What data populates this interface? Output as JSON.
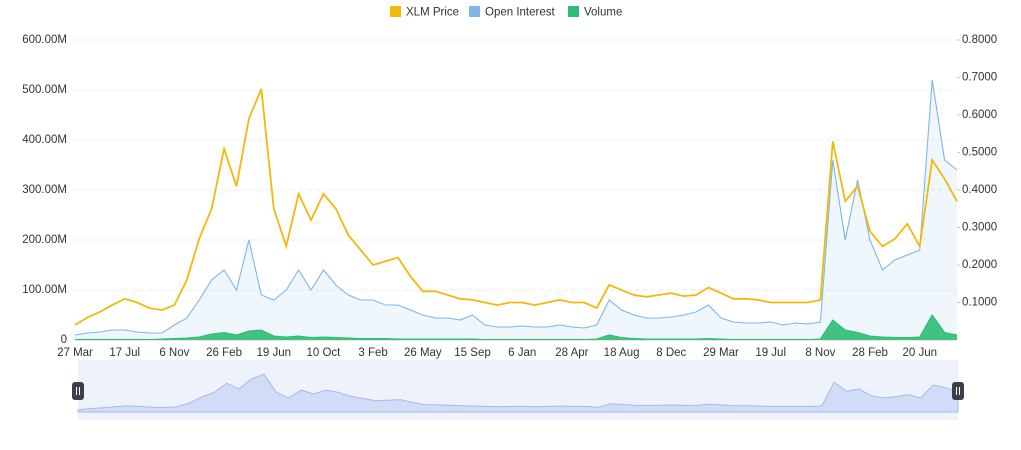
{
  "chart_data": {
    "type": "line",
    "categories": [
      "27 Mar",
      null,
      null,
      null,
      "17 Jul",
      null,
      null,
      null,
      "6 Nov",
      null,
      null,
      null,
      "26 Feb",
      null,
      null,
      null,
      "19 Jun",
      null,
      null,
      null,
      "10 Oct",
      null,
      null,
      null,
      "3 Feb",
      null,
      null,
      null,
      "26 May",
      null,
      null,
      null,
      "15 Sep",
      null,
      null,
      null,
      "6 Jan",
      null,
      null,
      null,
      "28 Apr",
      null,
      null,
      null,
      "18 Aug",
      null,
      null,
      null,
      "8 Dec",
      null,
      null,
      null,
      "29 Mar",
      null,
      null,
      null,
      "19 Jul",
      null,
      null,
      null,
      "8 Nov",
      null,
      null,
      null,
      "28 Feb",
      null,
      null,
      null,
      "20 Jun",
      null,
      null,
      null
    ],
    "series": [
      {
        "name": "XLM Price",
        "color": "#f0b90b",
        "axis": "y2",
        "values": [
          0.04,
          0.06,
          0.075,
          0.093,
          0.11,
          0.1,
          0.085,
          0.08,
          0.093,
          0.16,
          0.27,
          0.35,
          0.51,
          0.41,
          0.59,
          0.67,
          0.35,
          0.25,
          0.39,
          0.32,
          0.39,
          0.35,
          0.28,
          0.24,
          0.2,
          0.21,
          0.22,
          0.17,
          0.13,
          0.13,
          0.12,
          0.11,
          0.107,
          0.1,
          0.093,
          0.1,
          0.1,
          0.093,
          0.1,
          0.107,
          0.1,
          0.1,
          0.085,
          0.147,
          0.133,
          0.12,
          0.115,
          0.12,
          0.125,
          0.117,
          0.12,
          0.14,
          0.125,
          0.11,
          0.11,
          0.107,
          0.1,
          0.1,
          0.1,
          0.1,
          0.107,
          0.53,
          0.37,
          0.41,
          0.29,
          0.25,
          0.27,
          0.31,
          0.25,
          0.48,
          0.43,
          0.37
        ]
      },
      {
        "name": "Open Interest",
        "color": "#7eb6ea",
        "values": [
          10000000.0,
          14000000.0,
          16000000.0,
          20000000.0,
          20000000.0,
          16000000.0,
          14000000.0,
          14000000.0,
          30000000.0,
          44000000.0,
          80000000.0,
          120000000.0,
          140000000.0,
          100000000.0,
          200000000.0,
          90000000.0,
          80000000.0,
          100000000.0,
          140000000.0,
          100000000.0,
          140000000.0,
          110000000.0,
          90000000.0,
          80000000.0,
          80000000.0,
          70000000.0,
          70000000.0,
          60000000.0,
          50000000.0,
          44000000.0,
          44000000.0,
          40000000.0,
          50000000.0,
          30000000.0,
          26000000.0,
          26000000.0,
          28000000.0,
          26000000.0,
          26000000.0,
          30000000.0,
          26000000.0,
          24000000.0,
          30000000.0,
          80000000.0,
          60000000.0,
          50000000.0,
          44000000.0,
          44000000.0,
          46000000.0,
          50000000.0,
          56000000.0,
          70000000.0,
          44000000.0,
          36000000.0,
          34000000.0,
          34000000.0,
          36000000.0,
          30000000.0,
          34000000.0,
          32000000.0,
          36000000.0,
          360000000.0,
          200000000.0,
          320000000.0,
          200000000.0,
          140000000.0,
          160000000.0,
          170000000.0,
          180000000.0,
          520000000.0,
          360000000.0,
          340000000.0
        ]
      },
      {
        "name": "Volume",
        "color": "#2ebd73",
        "values": [
          1000000.0,
          1000000.0,
          1000000.0,
          1000000.0,
          1000000.0,
          1000000.0,
          1000000.0,
          2000000.0,
          3000000.0,
          4000000.0,
          6000000.0,
          12000000.0,
          15000000.0,
          10000000.0,
          18000000.0,
          20000000.0,
          8000000.0,
          6000000.0,
          8000000.0,
          5000000.0,
          6000000.0,
          5000000.0,
          4000000.0,
          3000000.0,
          3000000.0,
          3000000.0,
          2000000.0,
          2000000.0,
          2000000.0,
          2000000.0,
          2000000.0,
          2000000.0,
          2000000.0,
          1000000.0,
          1000000.0,
          1000000.0,
          1000000.0,
          1000000.0,
          1000000.0,
          1000000.0,
          1000000.0,
          1000000.0,
          2000000.0,
          10000000.0,
          5000000.0,
          3000000.0,
          2000000.0,
          2000000.0,
          2000000.0,
          2000000.0,
          2000000.0,
          3000000.0,
          2000000.0,
          1000000.0,
          1000000.0,
          1000000.0,
          1000000.0,
          1000000.0,
          1000000.0,
          1000000.0,
          2000000.0,
          40000000.0,
          20000000.0,
          15000000.0,
          8000000.0,
          6000000.0,
          5000000.0,
          5000000.0,
          6000000.0,
          50000000.0,
          15000000.0,
          10000000.0
        ]
      }
    ],
    "ylim": [
      0,
      600000000
    ],
    "yticks": [
      0,
      {
        "value": 100000000,
        "label": "100.00M"
      },
      {
        "value": 200000000,
        "label": "200.00M"
      },
      {
        "value": 300000000,
        "label": "300.00M"
      },
      {
        "value": 400000000,
        "label": "400.00M"
      },
      {
        "value": 500000000,
        "label": "500.00M"
      },
      {
        "value": 600000000,
        "label": "600.00M"
      }
    ],
    "y2lim": [
      0,
      0.8
    ],
    "y2ticks": [
      {
        "value": 0.1,
        "label": "0.1000"
      },
      {
        "value": 0.2,
        "label": "0.2000"
      },
      {
        "value": 0.3,
        "label": "0.3000"
      },
      {
        "value": 0.4,
        "label": "0.4000"
      },
      {
        "value": 0.5,
        "label": "0.5000"
      },
      {
        "value": 0.6,
        "label": "0.6000"
      },
      {
        "value": 0.7,
        "label": "0.7000"
      },
      {
        "value": 0.8,
        "label": "0.8000"
      }
    ],
    "grid": true
  }
}
